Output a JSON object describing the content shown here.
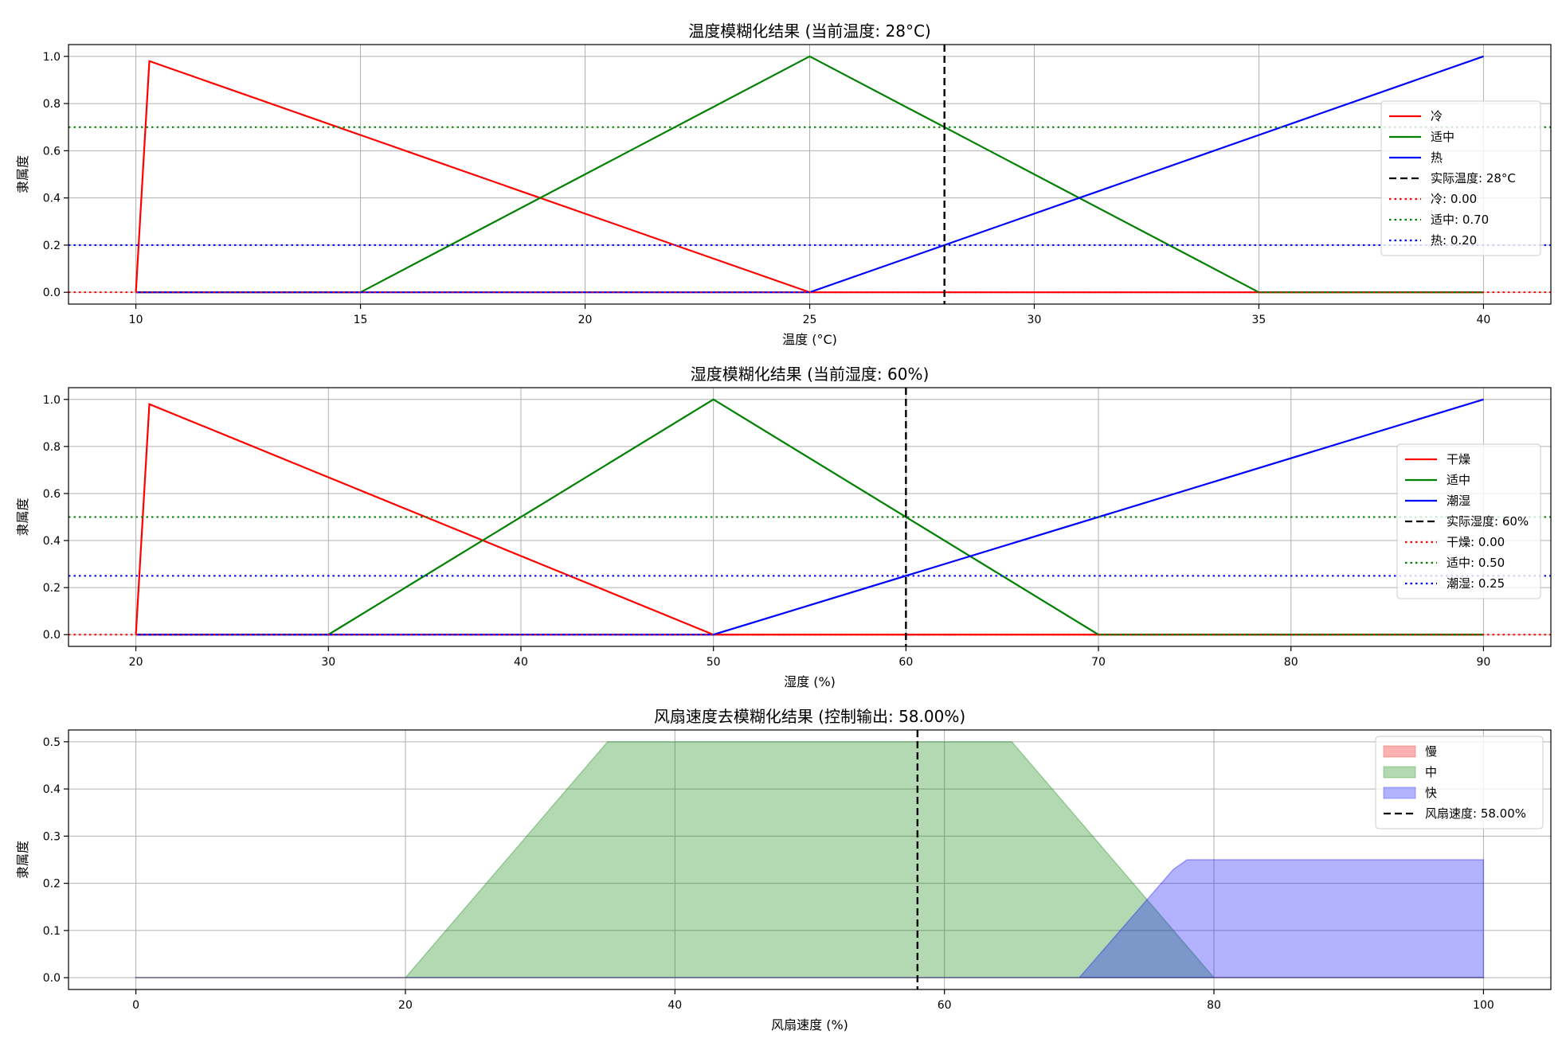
{
  "chart_data": [
    {
      "type": "line",
      "title": "温度模糊化结果 (当前温度: 28°C)",
      "xlabel": "温度 (°C)",
      "ylabel": "隶属度",
      "xlim": [
        8.5,
        41.5
      ],
      "ylim": [
        -0.05,
        1.05
      ],
      "xticks": [
        10,
        15,
        20,
        25,
        30,
        35,
        40
      ],
      "yticks": [
        0.0,
        0.2,
        0.4,
        0.6,
        0.8,
        1.0
      ],
      "grid": true,
      "legend_position": "right",
      "series": [
        {
          "name": "冷",
          "color": "#ff0000",
          "style": "solid",
          "points": [
            [
              10,
              0
            ],
            [
              10.3,
              0.98
            ],
            [
              25,
              0
            ],
            [
              40,
              0
            ]
          ]
        },
        {
          "name": "适中",
          "color": "#008000",
          "style": "solid",
          "points": [
            [
              10,
              0
            ],
            [
              15,
              0
            ],
            [
              25,
              1.0
            ],
            [
              35,
              0
            ],
            [
              40,
              0
            ]
          ]
        },
        {
          "name": "热",
          "color": "#0000ff",
          "style": "solid",
          "points": [
            [
              10,
              0
            ],
            [
              25,
              0
            ],
            [
              40,
              1.0
            ]
          ]
        }
      ],
      "vlines": [
        {
          "name": "实际温度: 28°C",
          "x": 28,
          "color": "#000000",
          "style": "dashed"
        }
      ],
      "hlines": [
        {
          "name": "冷: 0.00",
          "y": 0.0,
          "color": "#ff0000",
          "style": "dotted"
        },
        {
          "name": "适中: 0.70",
          "y": 0.7,
          "color": "#008000",
          "style": "dotted"
        },
        {
          "name": "热: 0.20",
          "y": 0.2,
          "color": "#0000ff",
          "style": "dotted"
        }
      ]
    },
    {
      "type": "line",
      "title": "湿度模糊化结果 (当前湿度: 60%)",
      "xlabel": "湿度 (%)",
      "ylabel": "隶属度",
      "xlim": [
        16.5,
        93.5
      ],
      "ylim": [
        -0.05,
        1.05
      ],
      "xticks": [
        20,
        30,
        40,
        50,
        60,
        70,
        80,
        90
      ],
      "yticks": [
        0.0,
        0.2,
        0.4,
        0.6,
        0.8,
        1.0
      ],
      "grid": true,
      "legend_position": "right",
      "series": [
        {
          "name": "干燥",
          "color": "#ff0000",
          "style": "solid",
          "points": [
            [
              20,
              0
            ],
            [
              20.7,
              0.98
            ],
            [
              50,
              0
            ],
            [
              90,
              0
            ]
          ]
        },
        {
          "name": "适中",
          "color": "#008000",
          "style": "solid",
          "points": [
            [
              20,
              0
            ],
            [
              30,
              0
            ],
            [
              50,
              1.0
            ],
            [
              70,
              0
            ],
            [
              90,
              0
            ]
          ]
        },
        {
          "name": "潮湿",
          "color": "#0000ff",
          "style": "solid",
          "points": [
            [
              20,
              0
            ],
            [
              50,
              0
            ],
            [
              90,
              1.0
            ]
          ]
        }
      ],
      "vlines": [
        {
          "name": "实际湿度: 60%",
          "x": 60,
          "color": "#000000",
          "style": "dashed"
        }
      ],
      "hlines": [
        {
          "name": "干燥: 0.00",
          "y": 0.0,
          "color": "#ff0000",
          "style": "dotted"
        },
        {
          "name": "适中: 0.50",
          "y": 0.5,
          "color": "#008000",
          "style": "dotted"
        },
        {
          "name": "潮湿: 0.25",
          "y": 0.25,
          "color": "#0000ff",
          "style": "dotted"
        }
      ]
    },
    {
      "type": "area",
      "title": "风扇速度去模糊化结果 (控制输出: 58.00%)",
      "xlabel": "风扇速度 (%)",
      "ylabel": "隶属度",
      "xlim": [
        -5,
        105
      ],
      "ylim": [
        -0.025,
        0.525
      ],
      "xticks": [
        0,
        20,
        40,
        60,
        80,
        100
      ],
      "yticks": [
        0.0,
        0.1,
        0.2,
        0.3,
        0.4,
        0.5
      ],
      "grid": true,
      "legend_position": "top-right",
      "series": [
        {
          "name": "慢",
          "color": "#ff0000",
          "alpha": 0.3,
          "points": [
            [
              0,
              0
            ],
            [
              100,
              0
            ]
          ]
        },
        {
          "name": "中",
          "color": "#008000",
          "alpha": 0.3,
          "points": [
            [
              0,
              0
            ],
            [
              20,
              0
            ],
            [
              35,
              0.5
            ],
            [
              65,
              0.5
            ],
            [
              80,
              0
            ],
            [
              100,
              0
            ]
          ]
        },
        {
          "name": "快",
          "color": "#0000ff",
          "alpha": 0.3,
          "points": [
            [
              0,
              0
            ],
            [
              70,
              0
            ],
            [
              77,
              0.23
            ],
            [
              78,
              0.25
            ],
            [
              100,
              0.25
            ]
          ]
        }
      ],
      "vlines": [
        {
          "name": "风扇速度: 58.00%",
          "x": 58,
          "color": "#000000",
          "style": "dashed"
        }
      ],
      "hlines": []
    }
  ]
}
